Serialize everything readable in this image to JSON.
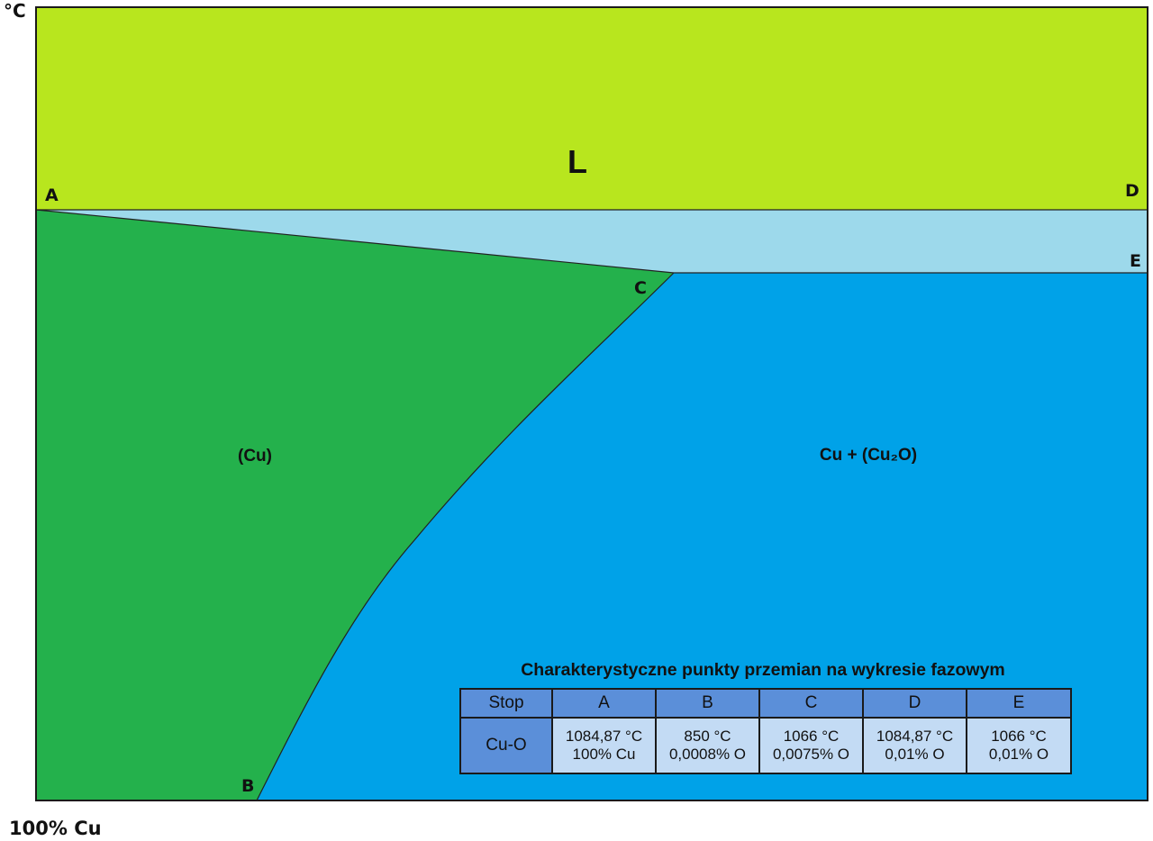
{
  "axis": {
    "unit": "°C",
    "corner": "100% Cu"
  },
  "points": {
    "A": "A",
    "B": "B",
    "C": "C",
    "D": "D",
    "E": "E"
  },
  "regions": {
    "liquid": "L",
    "solid_cu": "(Cu)",
    "two_phase": "Cu + (Cu₂O)"
  },
  "colors": {
    "liquid": "#b8e61e",
    "liquid_plus_solid": "#9dd9eb",
    "solid_cu": "#24b14c",
    "two_phase": "#00a2e8",
    "table_header": "#5b8fd9",
    "table_cell": "#c3dbf4"
  },
  "table": {
    "title": "Charakterystyczne punkty przemian na wykresie fazowym",
    "header": [
      "Stop",
      "A",
      "B",
      "C",
      "D",
      "E"
    ],
    "row": {
      "label": "Cu-O",
      "cells": [
        [
          "1084,87 °C",
          "100% Cu"
        ],
        [
          "850 °C",
          "0,0008% O"
        ],
        [
          "1066 °C",
          "0,0075% O"
        ],
        [
          "1084,87 °C",
          "0,01% O"
        ],
        [
          "1066 °C",
          "0,01% O"
        ]
      ]
    }
  }
}
